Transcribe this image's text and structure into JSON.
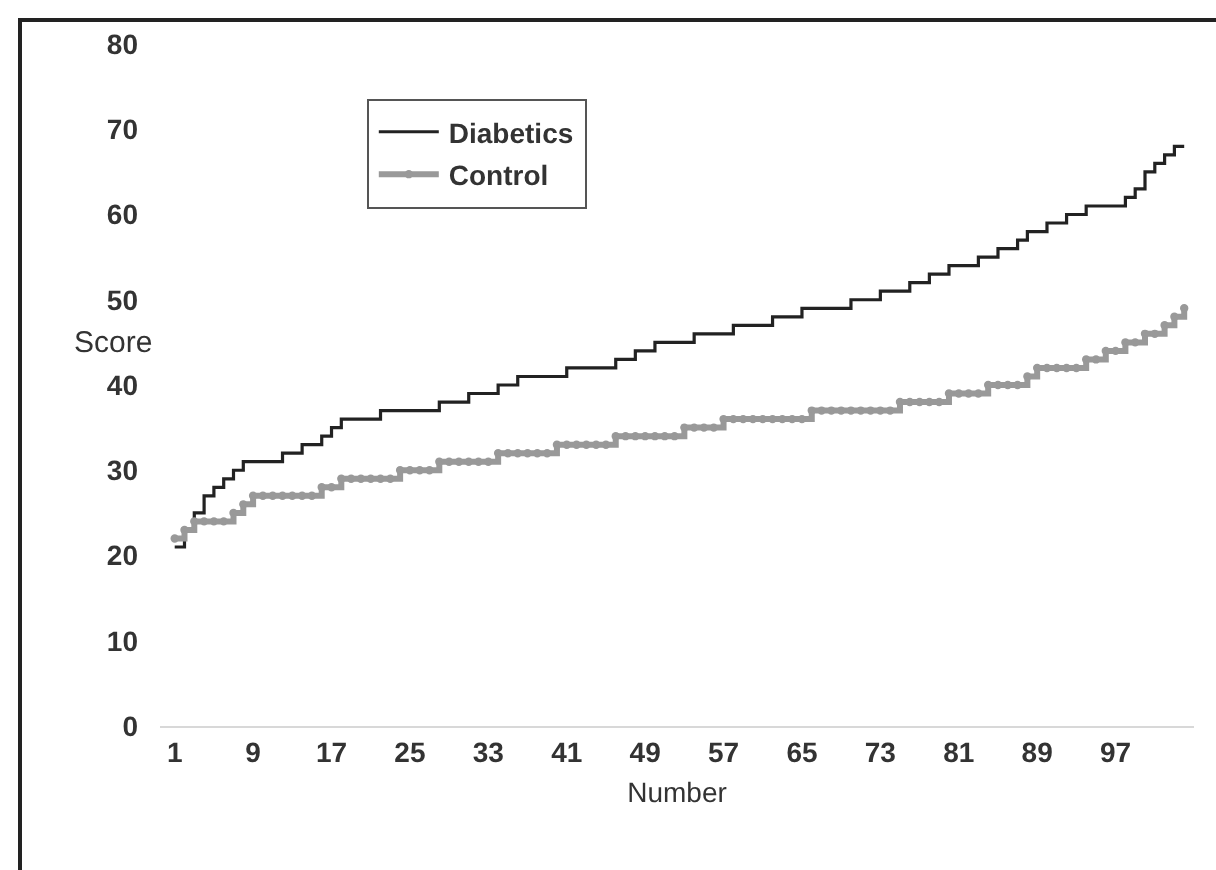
{
  "chart_data": {
    "type": "step",
    "xlabel": "Number",
    "ylabel": "Score",
    "x": [
      1,
      2,
      3,
      4,
      5,
      6,
      7,
      8,
      9,
      10,
      11,
      12,
      13,
      14,
      15,
      16,
      17,
      18,
      19,
      20,
      21,
      22,
      23,
      24,
      25,
      26,
      27,
      28,
      29,
      30,
      31,
      32,
      33,
      34,
      35,
      36,
      37,
      38,
      39,
      40,
      41,
      42,
      43,
      44,
      45,
      46,
      47,
      48,
      49,
      50,
      51,
      52,
      53,
      54,
      55,
      56,
      57,
      58,
      59,
      60,
      61,
      62,
      63,
      64,
      65,
      66,
      67,
      68,
      69,
      70,
      71,
      72,
      73,
      74,
      75,
      76,
      77,
      78,
      79,
      80,
      81,
      82,
      83,
      84,
      85,
      86,
      87,
      88,
      89,
      90,
      91,
      92,
      93,
      94,
      95,
      96,
      97,
      98,
      99,
      100,
      101,
      102,
      103,
      104
    ],
    "series": [
      {
        "name": "Diabetics",
        "color": "#222222",
        "marker": "none",
        "values": [
          21,
          23,
          25,
          27,
          28,
          29,
          30,
          31,
          31,
          31,
          31,
          32,
          32,
          33,
          33,
          34,
          35,
          36,
          36,
          36,
          36,
          37,
          37,
          37,
          37,
          37,
          37,
          38,
          38,
          38,
          39,
          39,
          39,
          40,
          40,
          41,
          41,
          41,
          41,
          41,
          42,
          42,
          42,
          42,
          42,
          43,
          43,
          44,
          44,
          45,
          45,
          45,
          45,
          46,
          46,
          46,
          46,
          47,
          47,
          47,
          47,
          48,
          48,
          48,
          49,
          49,
          49,
          49,
          49,
          50,
          50,
          50,
          51,
          51,
          51,
          52,
          52,
          53,
          53,
          54,
          54,
          54,
          55,
          55,
          56,
          56,
          57,
          58,
          58,
          59,
          59,
          60,
          60,
          61,
          61,
          61,
          61,
          62,
          63,
          65,
          66,
          67,
          68,
          68
        ]
      },
      {
        "name": "Control",
        "color": "#999999",
        "marker": "circle",
        "values": [
          22,
          23,
          24,
          24,
          24,
          24,
          25,
          26,
          27,
          27,
          27,
          27,
          27,
          27,
          27,
          28,
          28,
          29,
          29,
          29,
          29,
          29,
          29,
          30,
          30,
          30,
          30,
          31,
          31,
          31,
          31,
          31,
          31,
          32,
          32,
          32,
          32,
          32,
          32,
          33,
          33,
          33,
          33,
          33,
          33,
          34,
          34,
          34,
          34,
          34,
          34,
          34,
          35,
          35,
          35,
          35,
          36,
          36,
          36,
          36,
          36,
          36,
          36,
          36,
          36,
          37,
          37,
          37,
          37,
          37,
          37,
          37,
          37,
          37,
          38,
          38,
          38,
          38,
          38,
          39,
          39,
          39,
          39,
          40,
          40,
          40,
          40,
          41,
          42,
          42,
          42,
          42,
          42,
          43,
          43,
          44,
          44,
          45,
          45,
          46,
          46,
          47,
          48,
          49
        ]
      }
    ],
    "xlim": [
      -0.5,
      105
    ],
    "xticks": [
      1,
      9,
      17,
      25,
      33,
      41,
      49,
      57,
      65,
      73,
      81,
      89,
      97
    ],
    "ylim": [
      0,
      80
    ],
    "yticks": [
      0,
      10,
      20,
      30,
      40,
      50,
      60,
      70,
      80
    ],
    "grid": false,
    "legend": "top left"
  }
}
